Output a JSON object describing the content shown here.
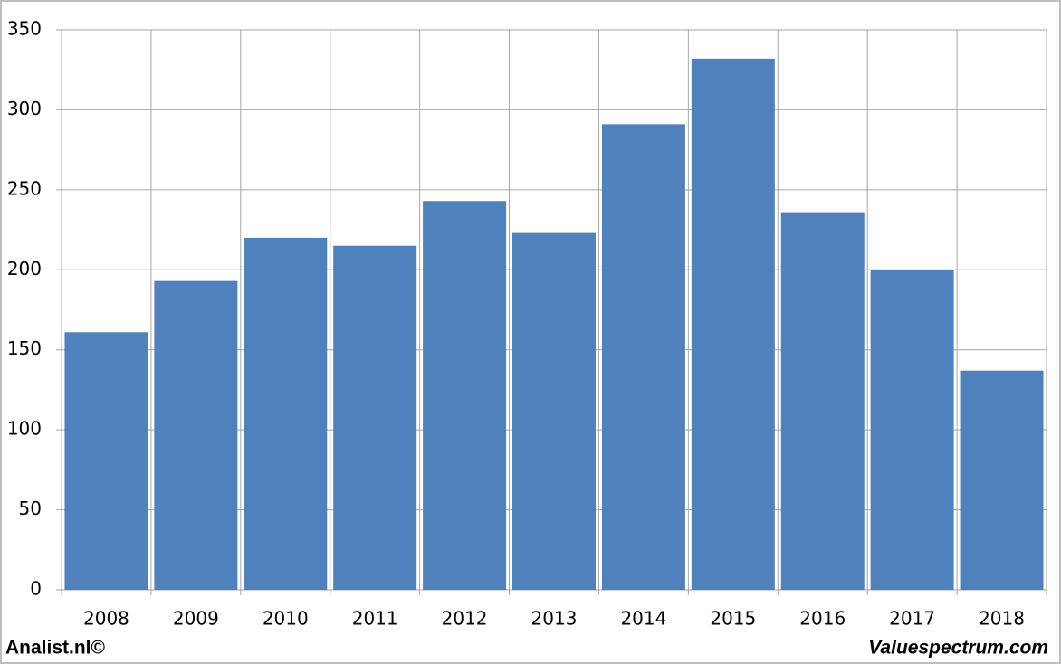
{
  "chart_data": {
    "type": "bar",
    "categories": [
      "2008",
      "2009",
      "2010",
      "2011",
      "2012",
      "2013",
      "2014",
      "2015",
      "2016",
      "2017",
      "2018"
    ],
    "values": [
      161,
      193,
      220,
      215,
      243,
      223,
      291,
      332,
      236,
      200,
      137
    ],
    "color": "#4f81bd",
    "ylim": [
      0,
      350
    ],
    "yticks": [
      0,
      50,
      100,
      150,
      200,
      250,
      300,
      350
    ],
    "grid": true,
    "footer_left": "Analist.nl©",
    "footer_right": "Valuespectrum.com"
  }
}
